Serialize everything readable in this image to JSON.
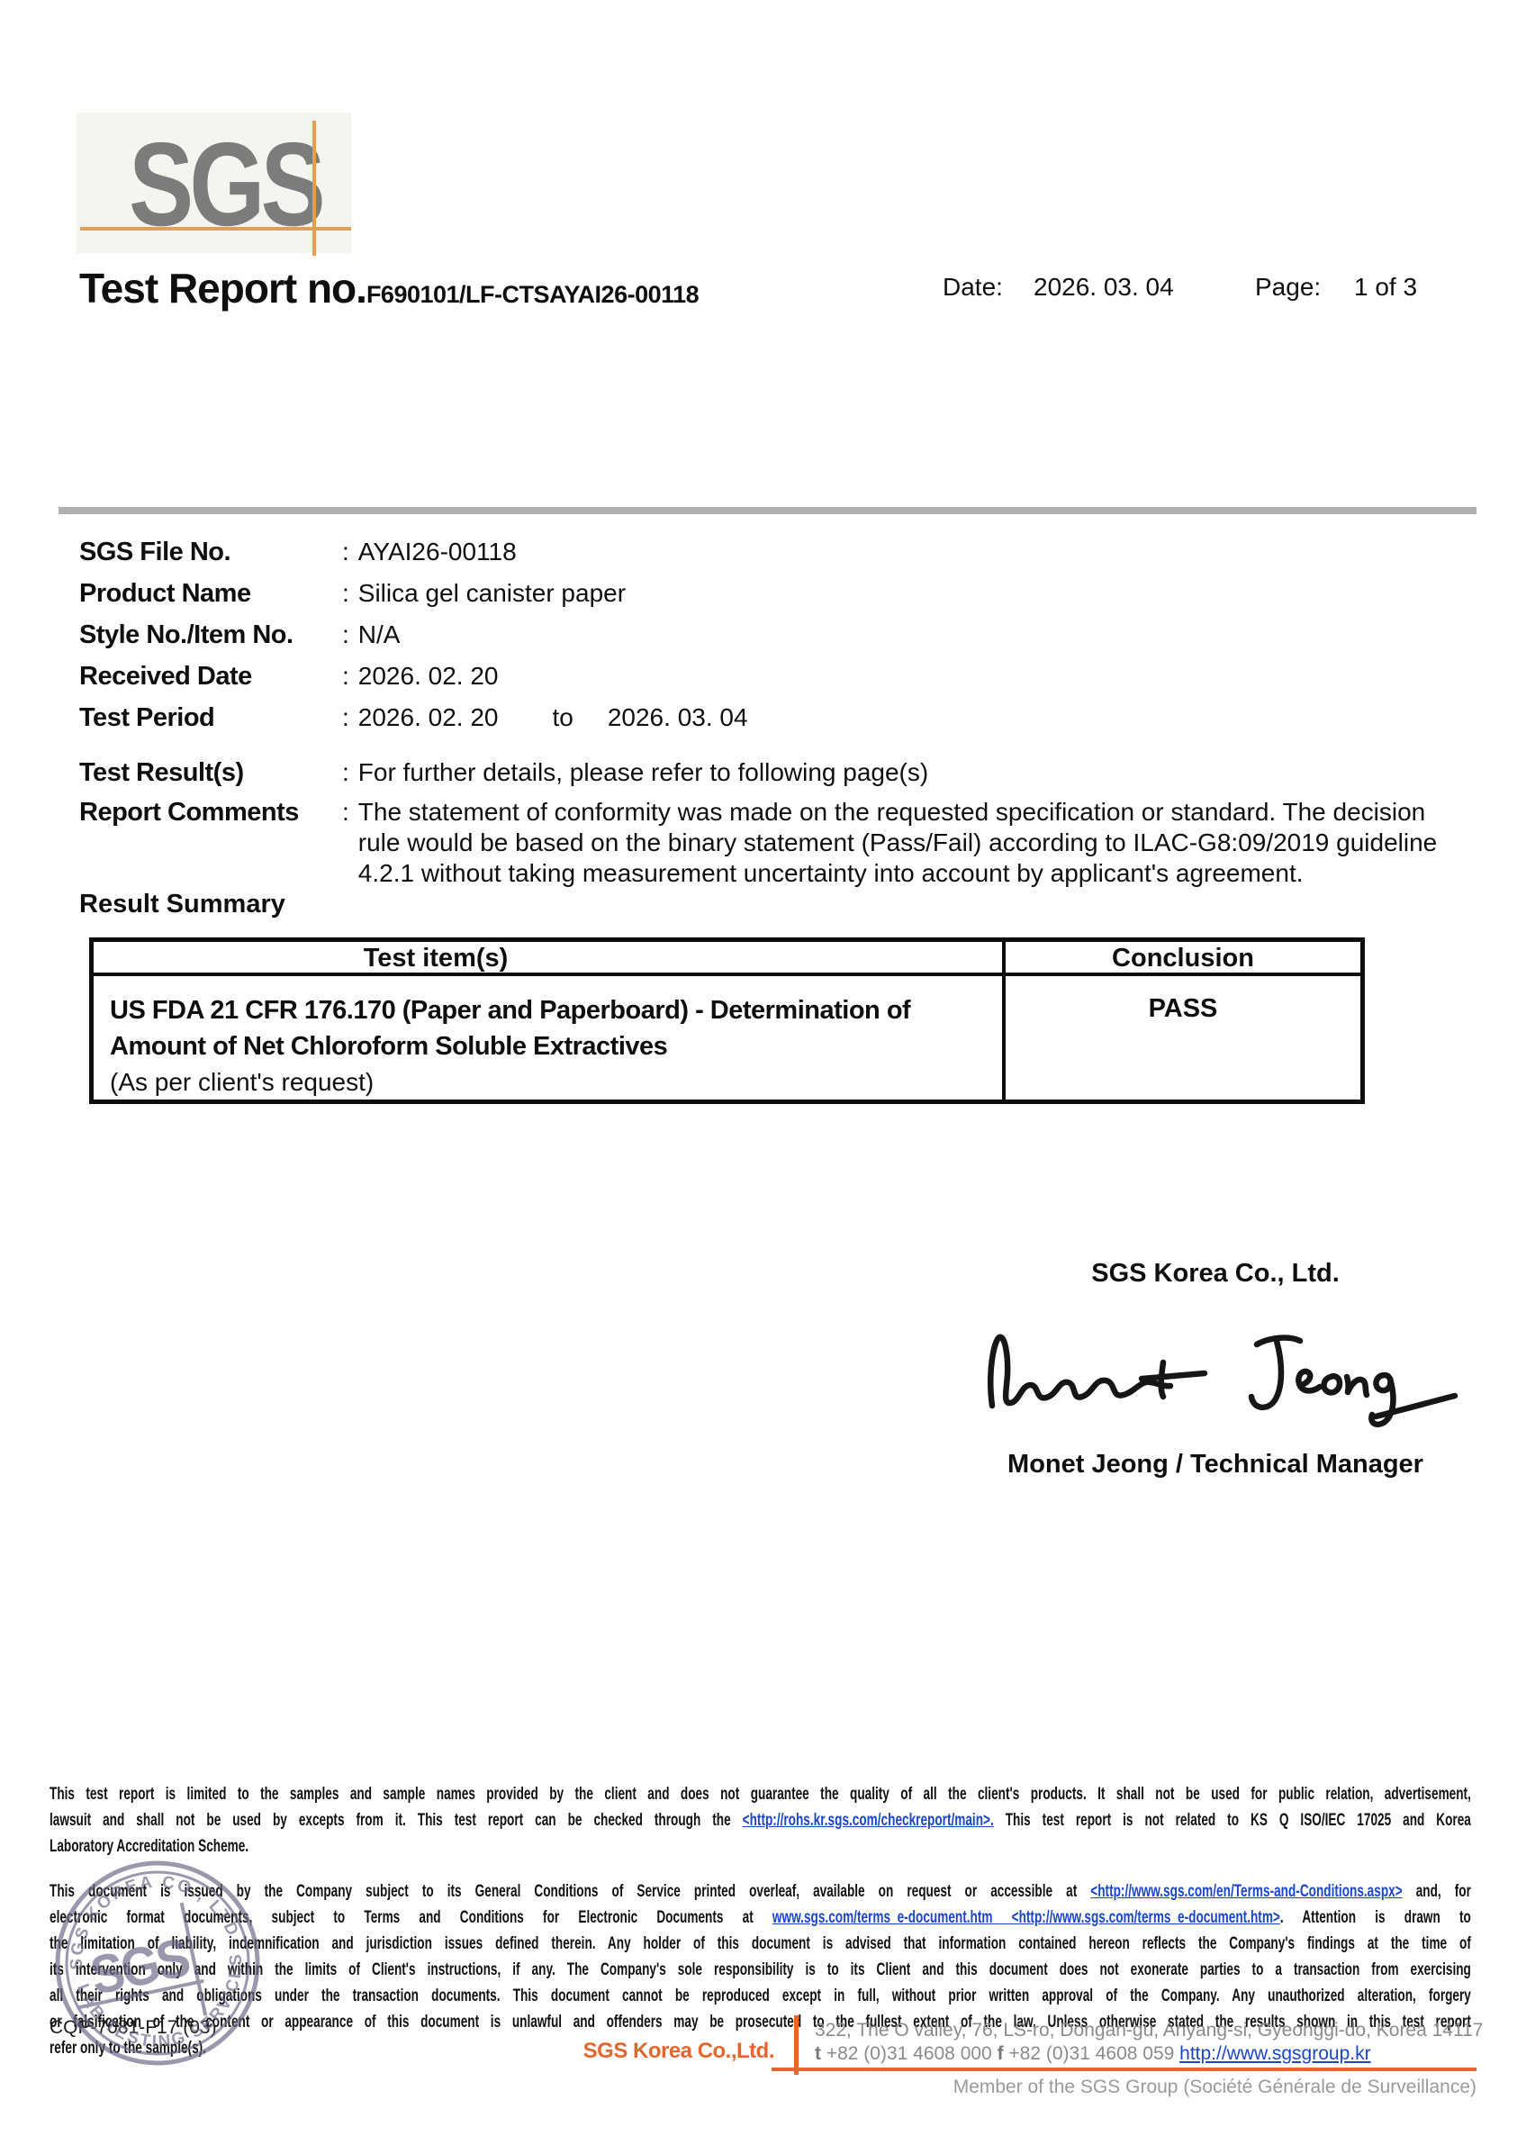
{
  "punct": {
    "colon": ":"
  },
  "colors": {
    "orange-accent": "#e2672e",
    "logo-orange": "#dfa054",
    "link-blue": "#1b46c8",
    "stamp-purple": "#6d6889",
    "bar-gray": "#b0b0b0",
    "logo-gray": "#7c7c7c",
    "text-gray": "#8b8b8b"
  },
  "header": {
    "logo_text": "SGS",
    "title": "Test Report no.",
    "report_no": "F690101/LF-CTSAYAI26-00118",
    "date_label": "Date:",
    "date_value": "2026. 03. 04",
    "page_label": "Page:",
    "page_value": "1 of 3"
  },
  "info": {
    "rows": [
      {
        "label": "SGS File No.",
        "value": "AYAI26-00118"
      },
      {
        "label": "Product Name",
        "value": "Silica gel canister paper"
      },
      {
        "label": "Style No./Item No.",
        "value": "N/A"
      },
      {
        "label": "Received Date",
        "value": "2026. 02. 20"
      },
      {
        "label": "Test Period",
        "value": "2026. 02. 20",
        "to_word": "to",
        "value2": "2026. 03. 04"
      },
      {
        "label": "Test Result(s)",
        "value": "For further details, please refer to following page(s)"
      }
    ],
    "report_comments": {
      "label": "Report Comments",
      "lines": [
        "The statement of conformity was made on the requested specification or standard. The decision",
        "rule would be based on the binary statement (Pass/Fail) according to ILAC-G8:09/2019 guideline",
        "4.2.1 without taking measurement uncertainty into account by applicant's agreement."
      ]
    }
  },
  "result_summary": {
    "heading": "Result Summary",
    "table": {
      "col1_header": "Test item(s)",
      "col2_header": "Conclusion",
      "rows": [
        {
          "item_bold_lines": [
            "US FDA 21 CFR 176.170 (Paper and Paperboard) - Determination of",
            "Amount of Net Chloroform Soluble Extractives"
          ],
          "item_note": "(As per client's request)",
          "conclusion": "PASS"
        }
      ]
    }
  },
  "signature": {
    "company": "SGS Korea Co., Ltd.",
    "signer": "Monet Jeong / Technical Manager"
  },
  "stamp": {
    "top_text": "SGS KOREA CO., LTD",
    "bottom_text": "LAB TESTING SERVICES",
    "center_text": "SGS"
  },
  "disclaimer": {
    "para1_lines": [
      [
        {
          "t": "This test report is limited to the samples and sample names provided by the client and does not guarantee the quality of all the client's products. It shall not be used for public relation, advertisement,"
        }
      ],
      [
        {
          "t": "lawsuit and shall not be used by excepts from it. This test report can be checked through the "
        },
        {
          "t": "<http://rohs.kr.sgs.com/checkreport/main>.",
          "link": true
        },
        {
          "t": " This test report is not related to KS Q ISO/IEC 17025 and Korea"
        }
      ],
      [
        {
          "t": "Laboratory Accreditation Scheme."
        }
      ]
    ],
    "para2_lines": [
      [
        {
          "t": "This document is issued by the Company subject to its General Conditions of Service printed overleaf, available on request or accessible at "
        },
        {
          "t": "<http://www.sgs.com/en/Terms-and-Conditions.aspx>",
          "link": true
        },
        {
          "t": " and, for"
        }
      ],
      [
        {
          "t": "electronic format documents, subject to Terms and Conditions for Electronic Documents at "
        },
        {
          "t": "www.sgs.com/terms_e-document.htm <http://www.sgs.com/terms_e-document.htm>",
          "link": true
        },
        {
          "t": ". Attention is drawn to"
        }
      ],
      [
        {
          "t": "the limitation of liability, indemnification and jurisdiction issues defined therein. Any holder of this document is advised that information contained hereon reflects the Company's findings at the time of"
        }
      ],
      [
        {
          "t": "its intervention only and within the limits of Client's instructions, if any. The Company's sole responsibility is to its Client and this document does not exonerate parties to a transaction from exercising"
        }
      ],
      [
        {
          "t": "all their rights and obligations under the transaction documents. This document cannot be reproduced except in full, without prior written approval of the Company. Any unauthorized alteration,  forgery"
        }
      ],
      [
        {
          "t": "or falsification of the content or appearance of this document is unlawful and offenders may be prosecuted to the fullest extent of the law.  Unless otherwise stated the results shown in this test report"
        }
      ],
      [
        {
          "t": "refer only to the sample(s)."
        }
      ]
    ]
  },
  "form_code": "CQP-7081-F17 (03)",
  "footer": {
    "company": "SGS Korea Co.,Ltd.",
    "address": "322, The O valley, 76, LS-ro, Dongan-gu, Anyang-si, Gyeonggi-do, Korea 14117",
    "phone_segments": [
      {
        "t": "t",
        "b": true
      },
      {
        "t": " +82 (0)31 4608 000  "
      },
      {
        "t": "f",
        "b": true
      },
      {
        "t": " +82 (0)31 4608 059 "
      },
      {
        "t": "http://www.sgsgroup.kr",
        "link": true
      }
    ],
    "member": "Member of the SGS Group (Société Générale de Surveillance)"
  }
}
